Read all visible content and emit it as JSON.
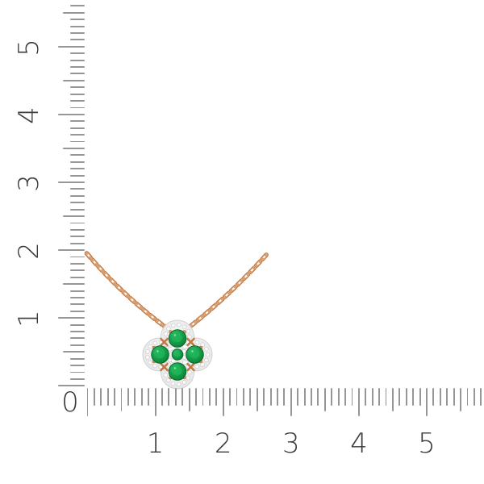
{
  "ruler": {
    "origin_label": "0",
    "vertical_labels": [
      "1",
      "2",
      "3",
      "4",
      "5"
    ],
    "horizontal_labels": [
      "1",
      "2",
      "3",
      "4",
      "5"
    ],
    "tick_color": "#969696",
    "label_color": "#3b3b3b"
  },
  "illustration": {
    "name": "clover-pendant-necklace",
    "colors": {
      "rose_gold": "#c07a45",
      "rose_gold_light": "#e8ad7c",
      "emerald": "#129a45",
      "emerald_dark": "#0a6c31",
      "diamond": "#fafafa",
      "halo_metal": "#ededed"
    }
  }
}
